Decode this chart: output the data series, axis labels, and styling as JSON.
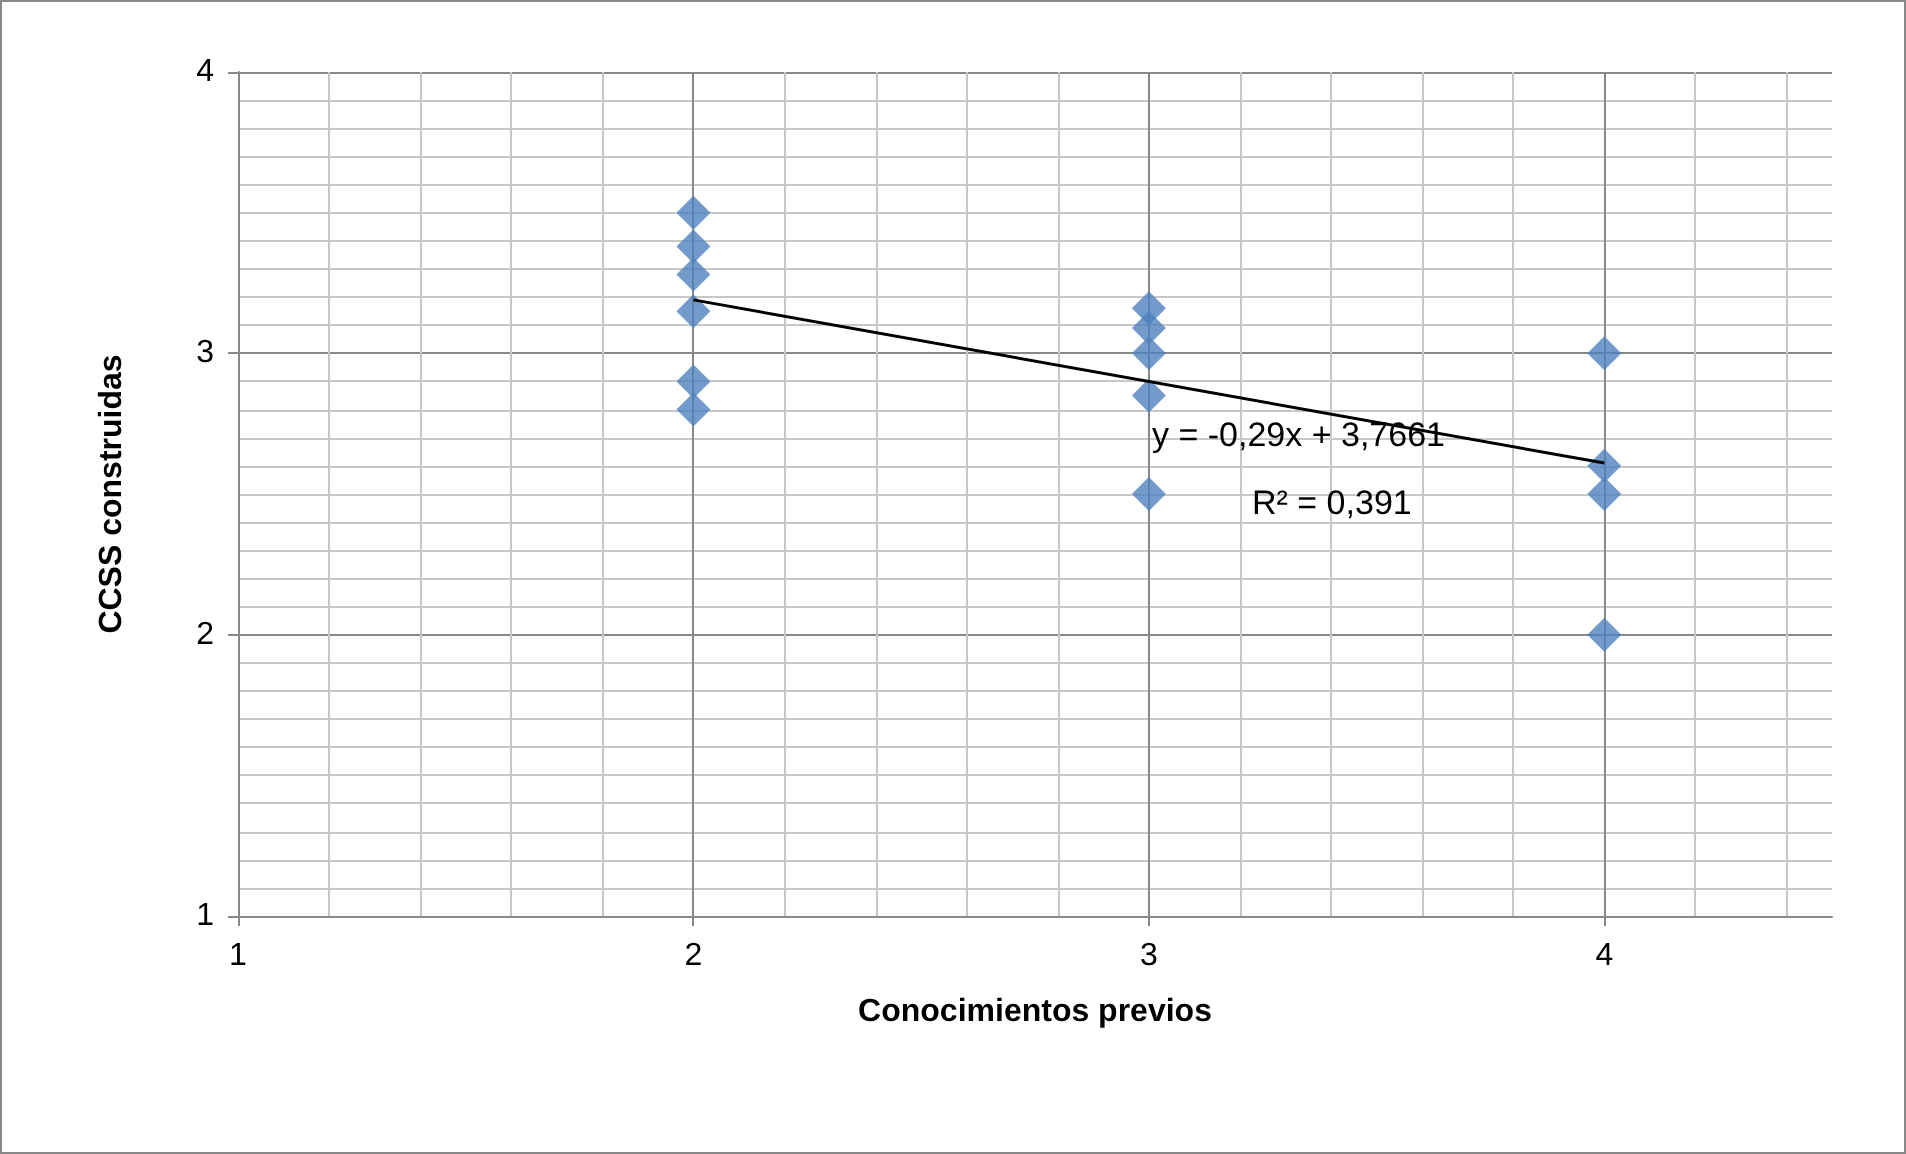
{
  "chart_data": {
    "type": "scatter",
    "xlabel": "Conocimientos previos",
    "ylabel": "CCSS construidas",
    "xlim": [
      1,
      4.5
    ],
    "xticks": [
      1,
      2,
      3,
      4
    ],
    "ylim": [
      1,
      4
    ],
    "yticks": [
      1,
      2,
      3,
      4
    ],
    "grid": true,
    "series": [
      {
        "marker": "diamond",
        "color": "#4f81bd",
        "x": [
          2,
          2,
          2,
          2,
          2,
          2,
          3,
          3,
          3,
          3,
          3,
          4,
          4,
          4,
          4
        ],
        "values": [
          3.5,
          3.38,
          3.28,
          3.15,
          2.9,
          2.8,
          3.16,
          3.09,
          3.0,
          2.85,
          2.5,
          3.0,
          2.6,
          2.5,
          2.0
        ]
      },
      {
        "type": "line",
        "marker": "none",
        "color": "#000000",
        "x": [
          2,
          4
        ],
        "values": [
          3.19,
          2.61
        ]
      }
    ],
    "annotations": [
      "y = -0,29x + 3,7661",
      "R² = 0,391"
    ]
  }
}
